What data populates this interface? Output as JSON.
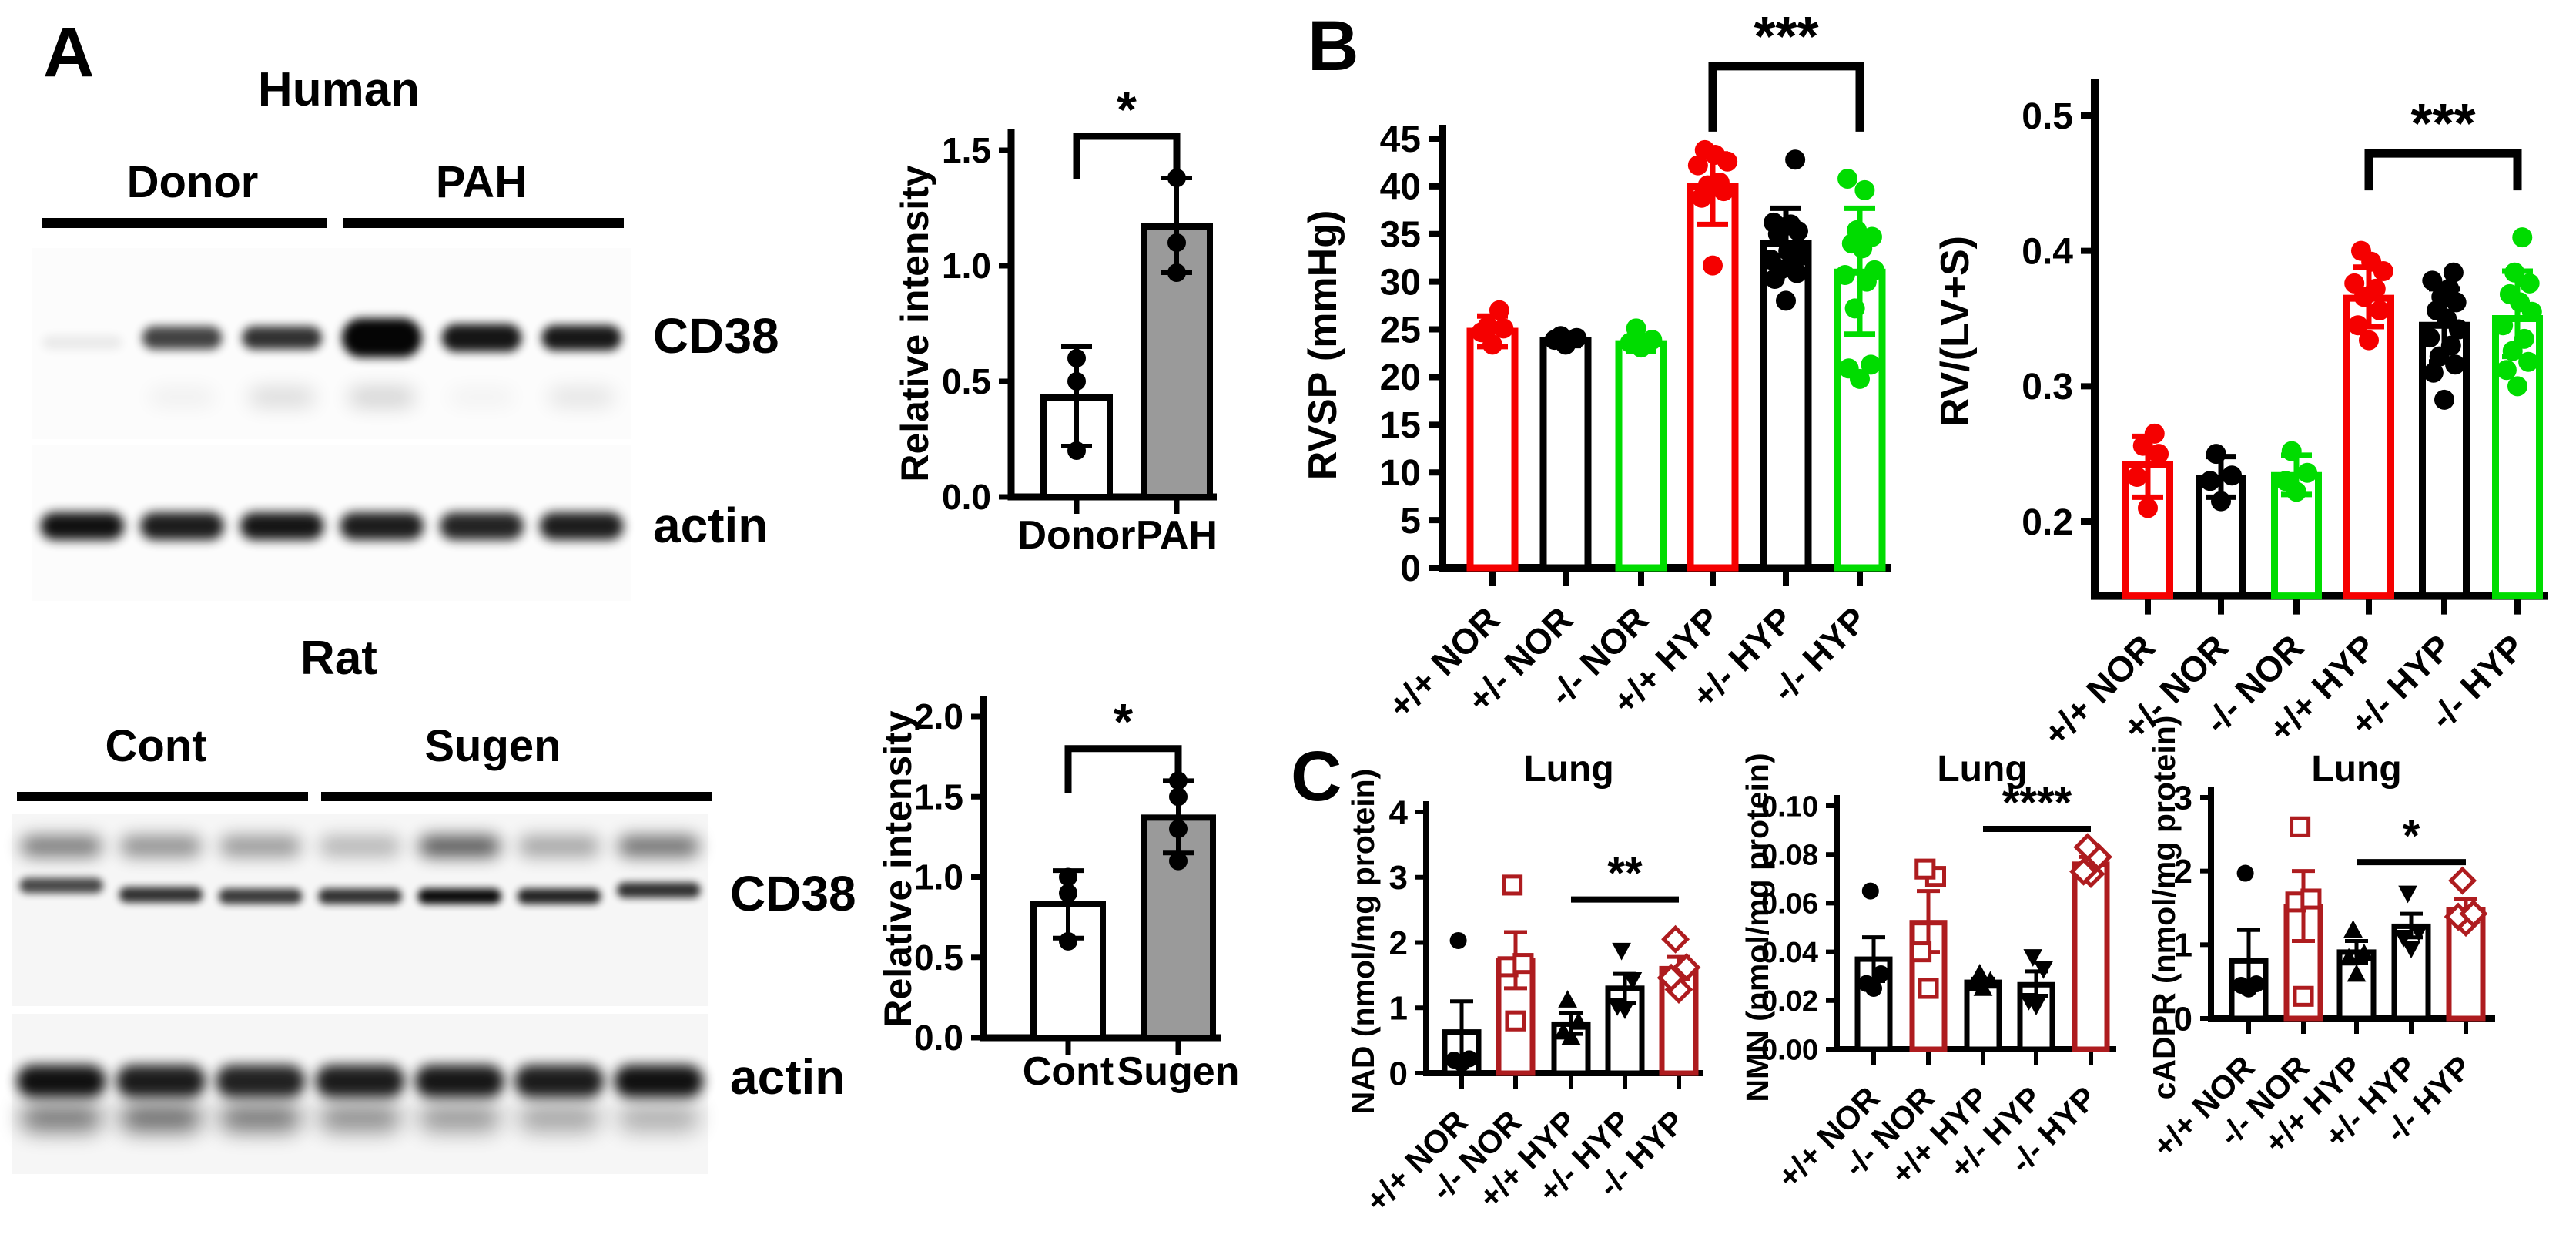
{
  "panel_a": {
    "label": "A",
    "human": {
      "title": "Human",
      "group1": "Donor",
      "group2": "PAH",
      "blot1_label": "CD38",
      "blot2_label": "actin",
      "blot1_bands": [
        [
          0.07,
          0.75,
          0.82,
          1.0,
          0.93,
          0.92
        ],
        [
          0,
          0.05,
          0.14,
          0.18,
          0.04,
          0.1
        ]
      ],
      "blot2_bands": [
        [
          0.95,
          0.9,
          0.93,
          0.9,
          0.87,
          0.9
        ]
      ]
    },
    "rat": {
      "title": "Rat",
      "group1": "Cont",
      "group2": "Sugen",
      "blot1_label": "CD38",
      "blot2_label": "actin",
      "blot1_bands": [
        [
          0.5,
          0.42,
          0.38,
          0.26,
          0.65,
          0.33,
          0.55
        ],
        [
          0.72,
          0.82,
          0.78,
          0.82,
          0.98,
          0.88,
          0.82
        ]
      ],
      "blot2_bands": [
        [
          0.95,
          0.9,
          0.88,
          0.9,
          0.92,
          0.9,
          0.95
        ],
        [
          0.55,
          0.6,
          0.55,
          0.45,
          0.4,
          0.35,
          0.3
        ]
      ]
    }
  },
  "panel_b": {
    "label": "B"
  },
  "panel_c": {
    "label": "C"
  },
  "chart_data": [
    {
      "id": "human_cd38_quantification",
      "type": "bar",
      "title": "",
      "ylabel": "Relative intensity",
      "ylim": [
        0,
        1.5
      ],
      "yticks": [
        0,
        0.5,
        1.0,
        1.5
      ],
      "ytick_labels": [
        "0.0",
        "0.5",
        "1.0",
        "1.5"
      ],
      "categories": [
        "Donor",
        "PAH"
      ],
      "values": [
        0.43,
        1.17
      ],
      "errors": [
        [
          0.22,
          0.65
        ],
        [
          0.97,
          1.38
        ]
      ],
      "points": [
        [
          0.2,
          0.5,
          0.6
        ],
        [
          0.97,
          1.1,
          1.38
        ]
      ],
      "bar_fills": [
        "#FFFFFF",
        "#9A9A9A"
      ],
      "colors": [
        "#000000",
        "#000000"
      ],
      "markers": [
        "circle",
        "circle"
      ],
      "significance": {
        "style": "bracket",
        "from": 0,
        "to": 1,
        "label": "*",
        "y": 1.56
      }
    },
    {
      "id": "rat_cd38_quantification",
      "type": "bar",
      "title": "",
      "ylabel": "Relative intensity",
      "ylim": [
        0,
        2.0
      ],
      "yticks": [
        0,
        0.5,
        1.0,
        1.5,
        2.0
      ],
      "ytick_labels": [
        "0.0",
        "0.5",
        "1.0",
        "1.5",
        "2.0"
      ],
      "categories": [
        "Cont",
        "Sugen"
      ],
      "values": [
        0.83,
        1.37
      ],
      "errors": [
        [
          0.62,
          1.04
        ],
        [
          1.15,
          1.6
        ]
      ],
      "points": [
        [
          0.6,
          0.9,
          1.0
        ],
        [
          1.1,
          1.3,
          1.5,
          1.6
        ]
      ],
      "bar_fills": [
        "#FFFFFF",
        "#9A9A9A"
      ],
      "colors": [
        "#000000",
        "#000000"
      ],
      "markers": [
        "circle",
        "circle"
      ],
      "significance": {
        "style": "bracket",
        "from": 0,
        "to": 1,
        "label": "*",
        "y": 1.8
      }
    },
    {
      "id": "rvsp",
      "type": "bar",
      "title": "",
      "ylabel": "RVSP (mmHg)",
      "ylim": [
        0,
        46
      ],
      "yticks": [
        0,
        5,
        10,
        15,
        20,
        25,
        30,
        35,
        40,
        45
      ],
      "ytick_labels": [
        "0",
        "5",
        "10",
        "15",
        "20",
        "25",
        "30",
        "35",
        "40",
        "45"
      ],
      "categories": [
        "+/+ NOR",
        "+/- NOR",
        "-/- NOR",
        "+/+ HYP",
        "+/- HYP",
        "-/- HYP"
      ],
      "values": [
        24.8,
        23.8,
        23.5,
        40.0,
        34.0,
        31.0
      ],
      "errors": [
        [
          23.2,
          26.4
        ],
        [
          23.3,
          24.2
        ],
        [
          22.7,
          24.3
        ],
        [
          36.0,
          43.4
        ],
        [
          31.8,
          37.7
        ],
        [
          24.5,
          37.7
        ]
      ],
      "points": [
        [
          23.4,
          24.7,
          25.1,
          25.3,
          27.0
        ],
        [
          23.4,
          23.9,
          24.1,
          24.3
        ],
        [
          23.1,
          23.6,
          23.9,
          25.1
        ],
        [
          31.7,
          38.8,
          39.5,
          40.1,
          40.4,
          42.2,
          42.6,
          43.3,
          43.8
        ],
        [
          28.0,
          30.3,
          30.9,
          31.3,
          31.9,
          32.3,
          32.7,
          33.2,
          35.0,
          35.3,
          35.7,
          36.0,
          36.2,
          42.8
        ],
        [
          19.8,
          20.9,
          21.3,
          27.2,
          30.0,
          30.7,
          31.2,
          33.5,
          34.0,
          34.7,
          35.4,
          39.6,
          40.8
        ]
      ],
      "bar_fills": [
        "#FFFFFF",
        "#FFFFFF",
        "#FFFFFF",
        "#FFFFFF",
        "#FFFFFF",
        "#FFFFFF"
      ],
      "colors": [
        "#F50000",
        "#000000",
        "#00DC00",
        "#F50000",
        "#000000",
        "#00DC00"
      ],
      "markers": [
        "circle",
        "circle",
        "circle",
        "circle",
        "circle",
        "circle"
      ],
      "significance": {
        "style": "bracket",
        "from": 3,
        "to": 5,
        "label": "***",
        "y": 52.6
      }
    },
    {
      "id": "fulton_index",
      "type": "bar",
      "title": "",
      "ylabel": "RV/(LV+S)",
      "ylim": [
        0.145,
        0.525
      ],
      "yticks": [
        0.2,
        0.3,
        0.4,
        0.5
      ],
      "ytick_labels": [
        "0.2",
        "0.3",
        "0.4",
        "0.5"
      ],
      "categories": [
        "+/+ NOR",
        "+/- NOR",
        "-/- NOR",
        "+/+ HYP",
        "+/- HYP",
        "-/- HYP"
      ],
      "values": [
        0.242,
        0.232,
        0.234,
        0.365,
        0.345,
        0.35
      ],
      "errors": [
        [
          0.218,
          0.263
        ],
        [
          0.218,
          0.248
        ],
        [
          0.22,
          0.249
        ],
        [
          0.344,
          0.388
        ],
        [
          0.318,
          0.372
        ],
        [
          0.322,
          0.385
        ]
      ],
      "points": [
        [
          0.21,
          0.233,
          0.25,
          0.256,
          0.265
        ],
        [
          0.215,
          0.23,
          0.234,
          0.25
        ],
        [
          0.222,
          0.23,
          0.236,
          0.252
        ],
        [
          0.334,
          0.345,
          0.356,
          0.366,
          0.372,
          0.376,
          0.385,
          0.392,
          0.4
        ],
        [
          0.29,
          0.31,
          0.316,
          0.322,
          0.33,
          0.336,
          0.342,
          0.35,
          0.356,
          0.362,
          0.366,
          0.372,
          0.378,
          0.384
        ],
        [
          0.3,
          0.312,
          0.318,
          0.326,
          0.335,
          0.345,
          0.355,
          0.362,
          0.368,
          0.376,
          0.384,
          0.41
        ]
      ],
      "bar_fills": [
        "#FFFFFF",
        "#FFFFFF",
        "#FFFFFF",
        "#FFFFFF",
        "#FFFFFF",
        "#FFFFFF"
      ],
      "colors": [
        "#F50000",
        "#000000",
        "#00DC00",
        "#F50000",
        "#000000",
        "#00DC00"
      ],
      "markers": [
        "circle",
        "circle",
        "circle",
        "circle",
        "circle",
        "circle"
      ],
      "significance": {
        "style": "bracket",
        "from": 3,
        "to": 5,
        "label": "***",
        "y": 0.472
      }
    },
    {
      "id": "lung_nad",
      "type": "bar",
      "title": "Lung",
      "ylabel": "NAD (nmol/mg protein)",
      "ylim": [
        0,
        4
      ],
      "yticks": [
        0,
        1,
        2,
        3,
        4
      ],
      "ytick_labels": [
        "0",
        "1",
        "2",
        "3",
        "4"
      ],
      "categories": [
        "+/+ NOR",
        "-/- NOR",
        "+/+ HYP",
        "+/- HYP",
        "-/- HYP"
      ],
      "values": [
        0.63,
        1.72,
        0.75,
        1.3,
        1.6
      ],
      "errors": [
        [
          0.17,
          1.1
        ],
        [
          1.3,
          2.16
        ],
        [
          0.6,
          0.92
        ],
        [
          1.08,
          1.52
        ],
        [
          1.44,
          1.78
        ]
      ],
      "points": [
        [
          0.15,
          0.2,
          0.22,
          2.03
        ],
        [
          0.8,
          1.63,
          1.68,
          2.88
        ],
        [
          0.55,
          0.63,
          0.78,
          1.12
        ],
        [
          0.98,
          1.03,
          1.43,
          1.88
        ],
        [
          1.28,
          1.46,
          1.62,
          2.05
        ]
      ],
      "bar_fills": [
        "#FFFFFF",
        "#FFFFFF",
        "#FFFFFF",
        "#FFFFFF",
        "#FFFFFF"
      ],
      "colors": [
        "#000000",
        "#AE1C1F",
        "#000000",
        "#000000",
        "#AE1C1F"
      ],
      "markers": [
        "circle",
        "square-open",
        "triangle-up",
        "triangle-down",
        "diamond-open"
      ],
      "significance": {
        "style": "line",
        "from": 2,
        "to": 4,
        "label": "**",
        "y": 2.66
      }
    },
    {
      "id": "lung_nmn",
      "type": "bar",
      "title": "Lung",
      "ylabel": "NMN (nmol/mg protein)",
      "ylim": [
        0,
        0.1
      ],
      "yticks": [
        0,
        0.02,
        0.04,
        0.06,
        0.08,
        0.1
      ],
      "ytick_labels": [
        "0.00",
        "0.02",
        "0.04",
        "0.06",
        "0.08",
        "0.10"
      ],
      "categories": [
        "+/+ NOR",
        "-/- NOR",
        "+/+ HYP",
        "+/- HYP",
        "-/- HYP"
      ],
      "values": [
        0.037,
        0.052,
        0.0275,
        0.0265,
        0.076
      ],
      "errors": [
        [
          0.028,
          0.046
        ],
        [
          0.04,
          0.065
        ],
        [
          0.026,
          0.029
        ],
        [
          0.022,
          0.032
        ],
        [
          0.073,
          0.079
        ]
      ],
      "points": [
        [
          0.025,
          0.027,
          0.031,
          0.065
        ],
        [
          0.025,
          0.04,
          0.071,
          0.074
        ],
        [
          0.025,
          0.027,
          0.028,
          0.031
        ],
        [
          0.018,
          0.02,
          0.033,
          0.038
        ],
        [
          0.072,
          0.073,
          0.079,
          0.083
        ]
      ],
      "bar_fills": [
        "#FFFFFF",
        "#FFFFFF",
        "#FFFFFF",
        "#FFFFFF",
        "#FFFFFF"
      ],
      "colors": [
        "#000000",
        "#AE1C1F",
        "#000000",
        "#000000",
        "#AE1C1F"
      ],
      "markers": [
        "circle",
        "square-open",
        "triangle-up",
        "triangle-down",
        "diamond-open"
      ],
      "significance": {
        "style": "line",
        "from": 2,
        "to": 4,
        "label": "****",
        "y": 0.0905
      }
    },
    {
      "id": "lung_cadpr",
      "type": "bar",
      "title": "Lung",
      "ylabel": "cADPR (nmol/mg protein)",
      "ylim": [
        0,
        3
      ],
      "yticks": [
        0,
        1,
        2,
        3
      ],
      "ytick_labels": [
        "0",
        "1",
        "2",
        "3"
      ],
      "categories": [
        "+/+ NOR",
        "-/- NOR",
        "+/+ HYP",
        "+/- HYP",
        "-/- HYP"
      ],
      "values": [
        0.78,
        1.52,
        0.9,
        1.25,
        1.47
      ],
      "errors": [
        [
          0.4,
          1.2
        ],
        [
          1.05,
          2.0
        ],
        [
          0.75,
          1.05
        ],
        [
          1.1,
          1.42
        ],
        [
          1.35,
          1.62
        ]
      ],
      "points": [
        [
          0.4,
          0.45,
          0.47,
          1.97
        ],
        [
          0.3,
          1.58,
          1.62,
          2.6
        ],
        [
          0.6,
          0.82,
          0.88,
          1.2
        ],
        [
          0.95,
          1.1,
          1.18,
          1.7
        ],
        [
          1.3,
          1.38,
          1.42,
          1.87
        ]
      ],
      "bar_fills": [
        "#FFFFFF",
        "#FFFFFF",
        "#FFFFFF",
        "#FFFFFF",
        "#FFFFFF"
      ],
      "colors": [
        "#000000",
        "#AE1C1F",
        "#000000",
        "#000000",
        "#AE1C1F"
      ],
      "markers": [
        "circle",
        "square-open",
        "triangle-up",
        "triangle-down",
        "diamond-open"
      ],
      "significance": {
        "style": "line",
        "from": 2,
        "to": 4,
        "label": "*",
        "y": 2.12
      }
    }
  ]
}
